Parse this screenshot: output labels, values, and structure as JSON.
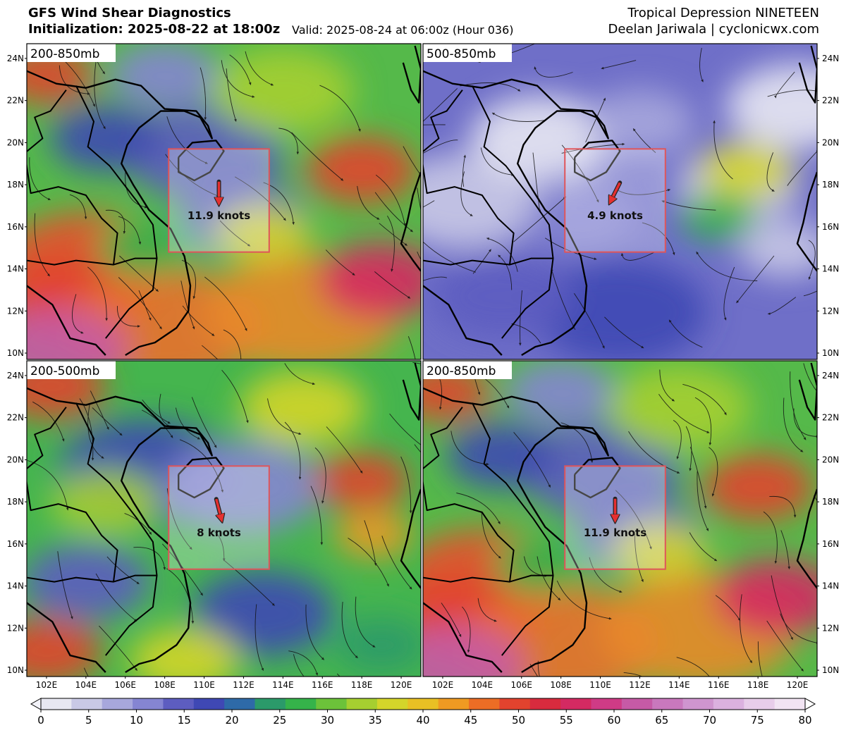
{
  "header": {
    "title": "GFS Wind Shear Diagnostics",
    "initialization": "Initialization: 2025-08-22 at 18:00z",
    "valid": "Valid: 2025-08-24 at 06:00z (Hour 036)",
    "storm": "Tropical Depression NINETEEN",
    "credit": "Deelan Jariwala | cyclonicwx.com"
  },
  "axes": {
    "lon_labels": [
      "102E",
      "104E",
      "106E",
      "108E",
      "110E",
      "112E",
      "114E",
      "116E",
      "118E",
      "120E"
    ],
    "lat_labels": [
      "24N",
      "22N",
      "20N",
      "18N",
      "16N",
      "14N",
      "12N",
      "10N"
    ]
  },
  "panels": [
    {
      "label": "200-850mb",
      "shear": "11.9 knots",
      "position": "top-left",
      "arrow_direction": "south",
      "palette": "high"
    },
    {
      "label": "500-850mb",
      "shear": "4.9 knots",
      "position": "top-right",
      "arrow_direction": "south-southwest",
      "palette": "low"
    },
    {
      "label": "200-500mb",
      "shear": "8 knots",
      "position": "bottom-left",
      "arrow_direction": "south-southeast",
      "palette": "mid"
    },
    {
      "label": "200-850mb",
      "shear": "11.9 knots",
      "position": "bottom-right",
      "arrow_direction": "south",
      "palette": "high"
    }
  ],
  "colorbar": {
    "units": "knots",
    "ticks": [
      "0",
      "5",
      "10",
      "15",
      "20",
      "25",
      "30",
      "35",
      "40",
      "45",
      "50",
      "55",
      "60",
      "65",
      "70",
      "75",
      "80"
    ],
    "colors": [
      "#e8e8f2",
      "#c9c9e6",
      "#a7a7dc",
      "#8585d2",
      "#5d5dc0",
      "#3f48b4",
      "#2e6aa8",
      "#2b9a6a",
      "#35b34a",
      "#6cc23a",
      "#a6cf30",
      "#d4d52a",
      "#e9c024",
      "#ef9a22",
      "#ec6d25",
      "#e2432e",
      "#d82b3e",
      "#d42a62",
      "#cf3b86",
      "#c65aa6",
      "#c978bd",
      "#cf95cf",
      "#dbb1df",
      "#e8cdea",
      "#f2e4f3"
    ]
  },
  "colors": {
    "box": "#e0555a",
    "arrow": "#e53030",
    "coast": "#000000"
  }
}
